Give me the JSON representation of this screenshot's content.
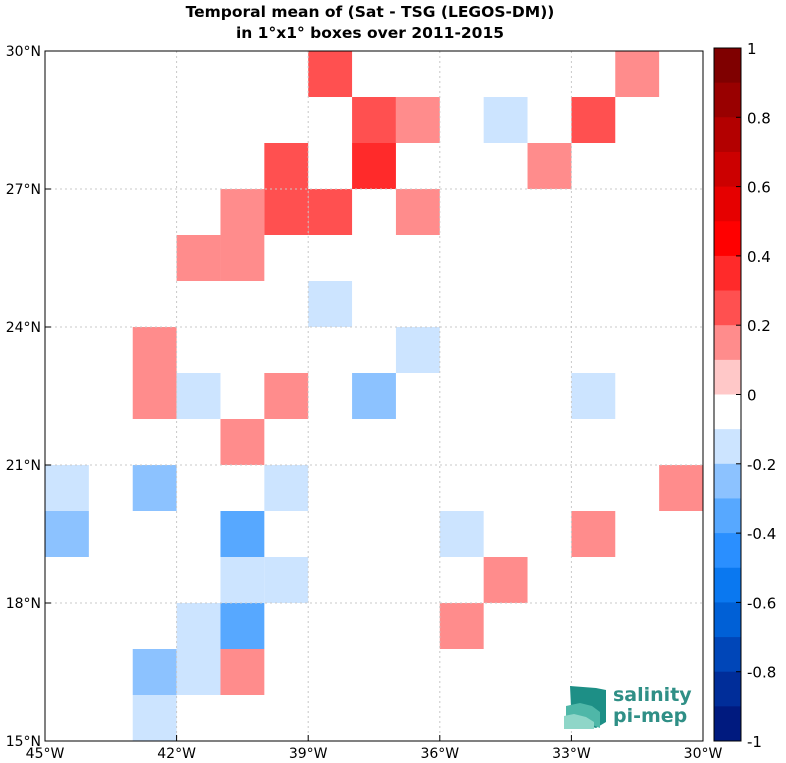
{
  "chart_data": {
    "type": "heatmap",
    "title": "Temporal mean of (Sat - TSG (LEGOS-DM))",
    "subtitle": "in 1°x1° boxes over 2011-2015",
    "xlabel": "",
    "ylabel": "",
    "xlim": [
      -45,
      -30
    ],
    "ylim": [
      15,
      30
    ],
    "grid": true,
    "x_ticks": [
      -45,
      -42,
      -39,
      -36,
      -33,
      -30
    ],
    "x_tick_labels": [
      "45°W",
      "42°W",
      "39°W",
      "36°W",
      "33°W",
      "30°W"
    ],
    "y_ticks": [
      15,
      18,
      21,
      24,
      27,
      30
    ],
    "y_tick_labels": [
      "15°N",
      "18°N",
      "21°N",
      "24°N",
      "27°N",
      "30°N"
    ],
    "colorbar": {
      "range": [
        -1,
        1
      ],
      "levels": 20,
      "tick_values": [
        1,
        0.8,
        0.6,
        0.4,
        0.2,
        0,
        -0.2,
        -0.4,
        -0.6,
        -0.8,
        -1
      ],
      "tick_labels": [
        "1",
        "0.8",
        "0.6",
        "0.4",
        "0.2",
        "0",
        "-0.2",
        "-0.4",
        "-0.6",
        "-0.8",
        "-1"
      ],
      "colors": [
        "#7f0000",
        "#990000",
        "#b30000",
        "#cc0000",
        "#e60000",
        "#ff0000",
        "#ff2a2a",
        "#ff5050",
        "#ff8c8c",
        "#ffc8c8",
        "#ffffff",
        "#cce4ff",
        "#8cc2ff",
        "#57a8ff",
        "#2a8fff",
        "#0a78f0",
        "#0060d6",
        "#0046b8",
        "#002d99",
        "#001a7f"
      ]
    },
    "cells": [
      {
        "lon": -38.5,
        "lat": 29.5,
        "value": 0.25
      },
      {
        "lon": -31.5,
        "lat": 29.5,
        "value": 0.15
      },
      {
        "lon": -37.5,
        "lat": 28.5,
        "value": 0.25
      },
      {
        "lon": -36.5,
        "lat": 28.5,
        "value": 0.15
      },
      {
        "lon": -34.5,
        "lat": 28.5,
        "value": -0.15
      },
      {
        "lon": -32.5,
        "lat": 28.5,
        "value": 0.25
      },
      {
        "lon": -39.5,
        "lat": 27.5,
        "value": 0.25
      },
      {
        "lon": -37.5,
        "lat": 27.5,
        "value": 0.35
      },
      {
        "lon": -33.5,
        "lat": 27.5,
        "value": 0.15
      },
      {
        "lon": -40.5,
        "lat": 26.5,
        "value": 0.15
      },
      {
        "lon": -39.5,
        "lat": 26.5,
        "value": 0.25
      },
      {
        "lon": -38.5,
        "lat": 26.5,
        "value": 0.25
      },
      {
        "lon": -36.5,
        "lat": 26.5,
        "value": 0.15
      },
      {
        "lon": -41.5,
        "lat": 25.5,
        "value": 0.15
      },
      {
        "lon": -40.5,
        "lat": 25.5,
        "value": 0.15
      },
      {
        "lon": -38.5,
        "lat": 24.5,
        "value": -0.15
      },
      {
        "lon": -42.5,
        "lat": 23.5,
        "value": 0.15
      },
      {
        "lon": -36.5,
        "lat": 23.5,
        "value": -0.15
      },
      {
        "lon": -42.5,
        "lat": 22.5,
        "value": 0.15
      },
      {
        "lon": -41.5,
        "lat": 22.5,
        "value": -0.15
      },
      {
        "lon": -39.5,
        "lat": 22.5,
        "value": 0.15
      },
      {
        "lon": -37.5,
        "lat": 22.5,
        "value": -0.25
      },
      {
        "lon": -32.5,
        "lat": 22.5,
        "value": -0.15
      },
      {
        "lon": -40.5,
        "lat": 21.5,
        "value": 0.15
      },
      {
        "lon": -44.5,
        "lat": 20.5,
        "value": -0.15
      },
      {
        "lon": -42.5,
        "lat": 20.5,
        "value": -0.25
      },
      {
        "lon": -39.5,
        "lat": 20.5,
        "value": -0.15
      },
      {
        "lon": -30.5,
        "lat": 20.5,
        "value": 0.15
      },
      {
        "lon": -44.5,
        "lat": 19.5,
        "value": -0.25
      },
      {
        "lon": -40.5,
        "lat": 19.5,
        "value": -0.35
      },
      {
        "lon": -35.5,
        "lat": 19.5,
        "value": -0.15
      },
      {
        "lon": -32.5,
        "lat": 19.5,
        "value": 0.15
      },
      {
        "lon": -40.5,
        "lat": 18.5,
        "value": -0.15
      },
      {
        "lon": -39.5,
        "lat": 18.5,
        "value": -0.15
      },
      {
        "lon": -34.5,
        "lat": 18.5,
        "value": 0.15
      },
      {
        "lon": -41.5,
        "lat": 17.5,
        "value": -0.15
      },
      {
        "lon": -40.5,
        "lat": 17.5,
        "value": -0.35
      },
      {
        "lon": -35.5,
        "lat": 17.5,
        "value": 0.15
      },
      {
        "lon": -42.5,
        "lat": 16.5,
        "value": -0.25
      },
      {
        "lon": -41.5,
        "lat": 16.5,
        "value": -0.15
      },
      {
        "lon": -40.5,
        "lat": 16.5,
        "value": 0.15
      },
      {
        "lon": -42.5,
        "lat": 15.5,
        "value": -0.15
      }
    ]
  },
  "logo": {
    "line1": "salinity",
    "line2": "pi-mep",
    "colors": [
      "#1d8f86",
      "#4fb7a8",
      "#8fd6c8"
    ]
  }
}
